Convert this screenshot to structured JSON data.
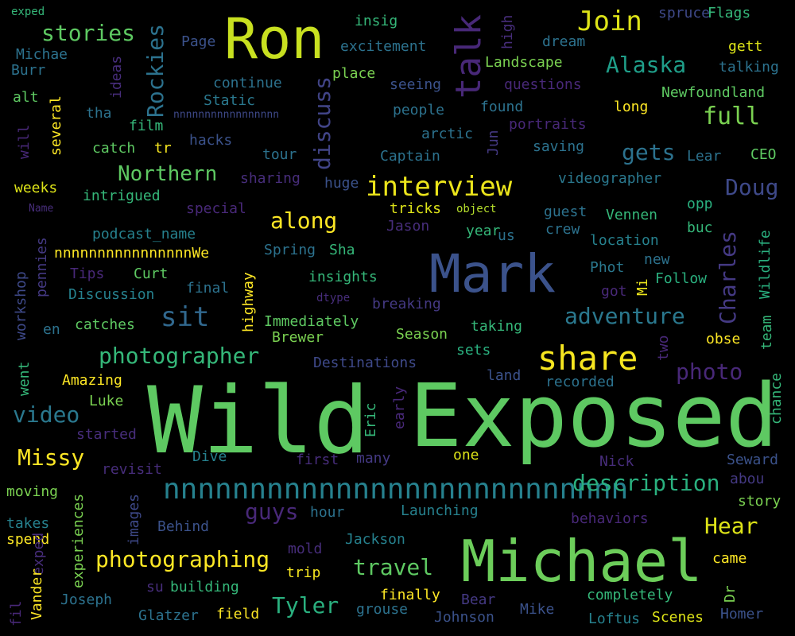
{
  "words": {
    "wild": "Wild",
    "exposed": "Exposed",
    "michael": "Michael",
    "mark": "Mark",
    "ron": "Ron",
    "nnnnlong": "nnnnnnnnnnnnnnnnnnnnnnnnnnn",
    "share": "share",
    "interview": "interview",
    "talk": "talk",
    "join": "Join",
    "alaska": "Alaska",
    "full": "full",
    "stories": "stories",
    "rockies": "Rockies",
    "discuss": "discuss",
    "northern": "Northern",
    "along": "along",
    "gets": "gets",
    "doug": "Doug",
    "sit": "sit",
    "charles": "Charles",
    "adventure": "adventure",
    "photographer": "photographer",
    "photo": "photo",
    "video": "video",
    "missy": "Missy",
    "description": "description",
    "guys": "guys",
    "hear": "Hear",
    "photographing": "photographing",
    "travel": "travel",
    "tyler": "Tyler",
    "exped": "exped",
    "michae": "Michae",
    "burr": "Burr",
    "alt": "alt",
    "tha": "tha",
    "will": "will",
    "several": "several",
    "ideas": "ideas",
    "film": "film",
    "catch": "catch",
    "tr": "tr",
    "hacks": "hacks",
    "weeks": "weeks",
    "intrigued": "intrigued",
    "name": "Name",
    "special": "special",
    "page": "Page",
    "continue": "continue",
    "static": "Static",
    "nnnnsmall": "nnnnnnnnnnnnnnnnn",
    "tour": "tour",
    "sharing": "sharing",
    "insig": "insig",
    "excitement": "excitement",
    "place": "place",
    "seeing": "seeing",
    "people": "people",
    "arctic": "arctic",
    "captain": "Captain",
    "huge": "huge",
    "high": "high",
    "dream": "dream",
    "spruce": "spruce",
    "flags": "Flags",
    "gett": "gett",
    "talking": "talking",
    "landscape": "Landscape",
    "questions": "questions",
    "newfoundland": "Newfoundland",
    "long": "long",
    "found": "found",
    "portraits": "portraits",
    "jun": "Jun",
    "saving": "saving",
    "lear": "Lear",
    "ceo": "CEO",
    "videographer": "videographer",
    "guest": "guest",
    "opp": "opp",
    "vennen": "Vennen",
    "buc": "buc",
    "wildlife": "Wildlife",
    "location": "location",
    "tricks": "tricks",
    "object": "object",
    "jason": "Jason",
    "year": "year",
    "us": "us",
    "crew": "crew",
    "new": "new",
    "phot": "Phot",
    "mi": "Mi",
    "follow": "Follow",
    "got": "got",
    "team": "team",
    "podcastname": "podcast_name",
    "nnnnwe": "nnnnnnnnnnnnnnnnWe",
    "pennies": "pennies",
    "workshop": "workshop",
    "tips": "Tips",
    "curt": "Curt",
    "discussion": "Discussion",
    "final": "final",
    "highway": "highway",
    "spring": "Spring",
    "sha": "Sha",
    "insights": "insights",
    "dtype": "dtype",
    "breaking": "breaking",
    "immediately": "Immediately",
    "brewer": "Brewer",
    "en": "en",
    "catches": "catches",
    "taking": "taking",
    "season": "Season",
    "sets": "sets",
    "two": "two",
    "obse": "obse",
    "destinations": "Destinations",
    "went": "went",
    "amazing": "Amazing",
    "luke": "Luke",
    "land": "land",
    "recorded": "recorded",
    "chance": "chance",
    "eric": "Eric",
    "early": "early",
    "started": "started",
    "dive": "Dive",
    "first": "first",
    "many": "many",
    "one": "one",
    "nick": "Nick",
    "seward": "Seward",
    "abou": "abou",
    "revisit": "revisit",
    "moving": "moving",
    "experiences": "experiences",
    "images": "images",
    "story": "story",
    "takes": "takes",
    "spend": "spend",
    "behind": "Behind",
    "hour": "hour",
    "launching": "Launching",
    "behaviors": "behaviors",
    "mold": "mold",
    "jackson": "Jackson",
    "came": "came",
    "exped2": "exped",
    "vander": "Vander",
    "fil": "fil",
    "trip": "trip",
    "su": "su",
    "building": "building",
    "joseph": "Joseph",
    "dr": "Dr",
    "finally": "finally",
    "bear": "Bear",
    "completely": "completely",
    "glatzer": "Glatzer",
    "field": "field",
    "grouse": "grouse",
    "johnson": "Johnson",
    "mike": "Mike",
    "loftus": "Loftus",
    "scenes": "Scenes",
    "homer": "Homer"
  },
  "colors": {
    "background": "#000000",
    "palette": [
      "#440154",
      "#482878",
      "#3e4989",
      "#31688e",
      "#26828e",
      "#1f9e89",
      "#35b779",
      "#6ece58",
      "#b5de2b",
      "#fde725"
    ]
  }
}
